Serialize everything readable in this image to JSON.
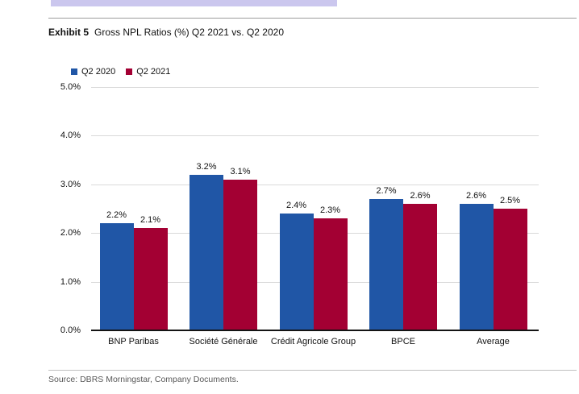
{
  "top_bar": {
    "color": "#cbc7ee"
  },
  "header": {
    "exhibit_label": "Exhibit 5",
    "title": "Gross NPL Ratios (%) Q2 2021 vs. Q2 2020"
  },
  "chart_data": {
    "type": "bar",
    "title": "Gross NPL Ratios (%) Q2 2021 vs. Q2 2020",
    "categories": [
      "BNP Paribas",
      "Société Générale",
      "Crédit Agricole Group",
      "BPCE",
      "Average"
    ],
    "series": [
      {
        "name": "Q2 2020",
        "color": "#2056A6",
        "values": [
          2.2,
          3.2,
          2.4,
          2.7,
          2.6
        ]
      },
      {
        "name": "Q2 2021",
        "color": "#A30033",
        "values": [
          2.1,
          3.1,
          2.3,
          2.6,
          2.5
        ]
      }
    ],
    "value_label_format": "percent_one_decimal",
    "y_ticks": [
      "5.0%",
      "4.0%",
      "3.0%",
      "2.0%",
      "1.0%",
      "0.0%"
    ],
    "y_tick_values": [
      5,
      4,
      3,
      2,
      1,
      0
    ],
    "ylim": [
      0,
      5
    ],
    "grid": true,
    "legend_position": "top-left",
    "xlabel": "",
    "ylabel": ""
  },
  "footer": {
    "source": "Source: DBRS Morningstar, Company Documents."
  }
}
